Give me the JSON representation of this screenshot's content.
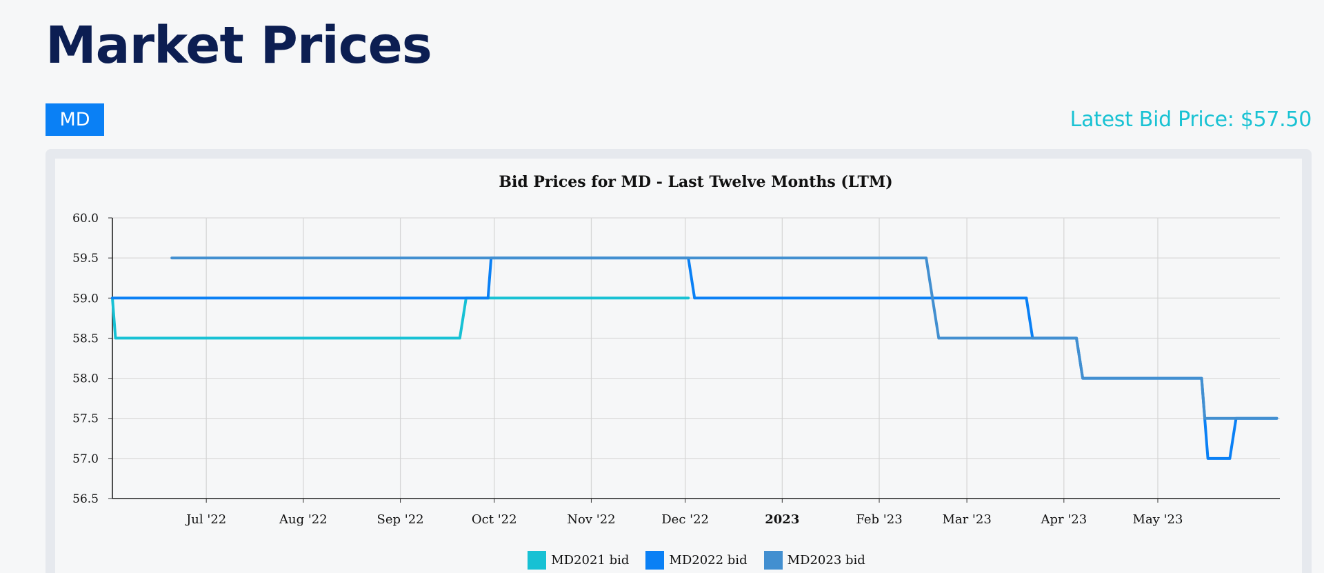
{
  "page": {
    "title": "Market Prices",
    "symbol_tab": "MD",
    "latest_bid_label": "Latest Bid Price: $57.50"
  },
  "colors": {
    "title": "#0c1e52",
    "accent": "#0a80f5",
    "latest_bid": "#19c2d3"
  },
  "chart_data": {
    "type": "line",
    "title": "Bid Prices for MD - Last Twelve Months (LTM)",
    "xlabel": "",
    "ylabel": "",
    "xlim": [
      "2022-06-01",
      "2023-06-09"
    ],
    "ylim": [
      56.5,
      60.0
    ],
    "grid": true,
    "legend_position": "bottom-center",
    "y_ticks": [
      "56.5",
      "57.0",
      "57.5",
      "58.0",
      "58.5",
      "59.0",
      "59.5",
      "60.0"
    ],
    "x_ticks": [
      {
        "date": "2022-07-01",
        "label": "Jul '22",
        "bold": false
      },
      {
        "date": "2022-08-01",
        "label": "Aug '22",
        "bold": false
      },
      {
        "date": "2022-09-01",
        "label": "Sep '22",
        "bold": false
      },
      {
        "date": "2022-10-01",
        "label": "Oct '22",
        "bold": false
      },
      {
        "date": "2022-11-01",
        "label": "Nov '22",
        "bold": false
      },
      {
        "date": "2022-12-01",
        "label": "Dec '22",
        "bold": false
      },
      {
        "date": "2023-01-01",
        "label": "2023",
        "bold": true
      },
      {
        "date": "2023-02-01",
        "label": "Feb '23",
        "bold": false
      },
      {
        "date": "2023-03-01",
        "label": "Mar '23",
        "bold": false
      },
      {
        "date": "2023-04-01",
        "label": "Apr '23",
        "bold": false
      },
      {
        "date": "2023-05-01",
        "label": "May '23",
        "bold": false
      }
    ],
    "series": [
      {
        "name": "MD2021 bid",
        "color": "#17c1d4",
        "points": [
          [
            "2022-06-01",
            59.0
          ],
          [
            "2022-06-02",
            58.5
          ],
          [
            "2022-09-20",
            58.5
          ],
          [
            "2022-09-22",
            59.0
          ],
          [
            "2022-12-02",
            59.0
          ]
        ]
      },
      {
        "name": "MD2022 bid",
        "color": "#0a80f5",
        "points": [
          [
            "2022-06-01",
            59.0
          ],
          [
            "2022-09-29",
            59.0
          ],
          [
            "2022-09-30",
            59.5
          ],
          [
            "2022-12-02",
            59.5
          ],
          [
            "2022-12-04",
            59.0
          ],
          [
            "2023-03-20",
            59.0
          ],
          [
            "2023-03-22",
            58.5
          ],
          [
            "2023-04-05",
            58.5
          ],
          [
            "2023-04-07",
            58.0
          ],
          [
            "2023-05-15",
            58.0
          ],
          [
            "2023-05-17",
            57.0
          ],
          [
            "2023-05-24",
            57.0
          ],
          [
            "2023-05-26",
            57.5
          ],
          [
            "2023-06-08",
            57.5
          ]
        ]
      },
      {
        "name": "MD2023 bid",
        "color": "#428fd0",
        "points": [
          [
            "2022-06-20",
            59.5
          ],
          [
            "2023-02-16",
            59.5
          ],
          [
            "2023-02-18",
            59.0
          ],
          [
            "2023-02-20",
            58.5
          ],
          [
            "2023-04-05",
            58.5
          ],
          [
            "2023-04-07",
            58.0
          ],
          [
            "2023-05-15",
            58.0
          ],
          [
            "2023-05-16",
            57.5
          ],
          [
            "2023-06-08",
            57.5
          ]
        ]
      }
    ]
  }
}
